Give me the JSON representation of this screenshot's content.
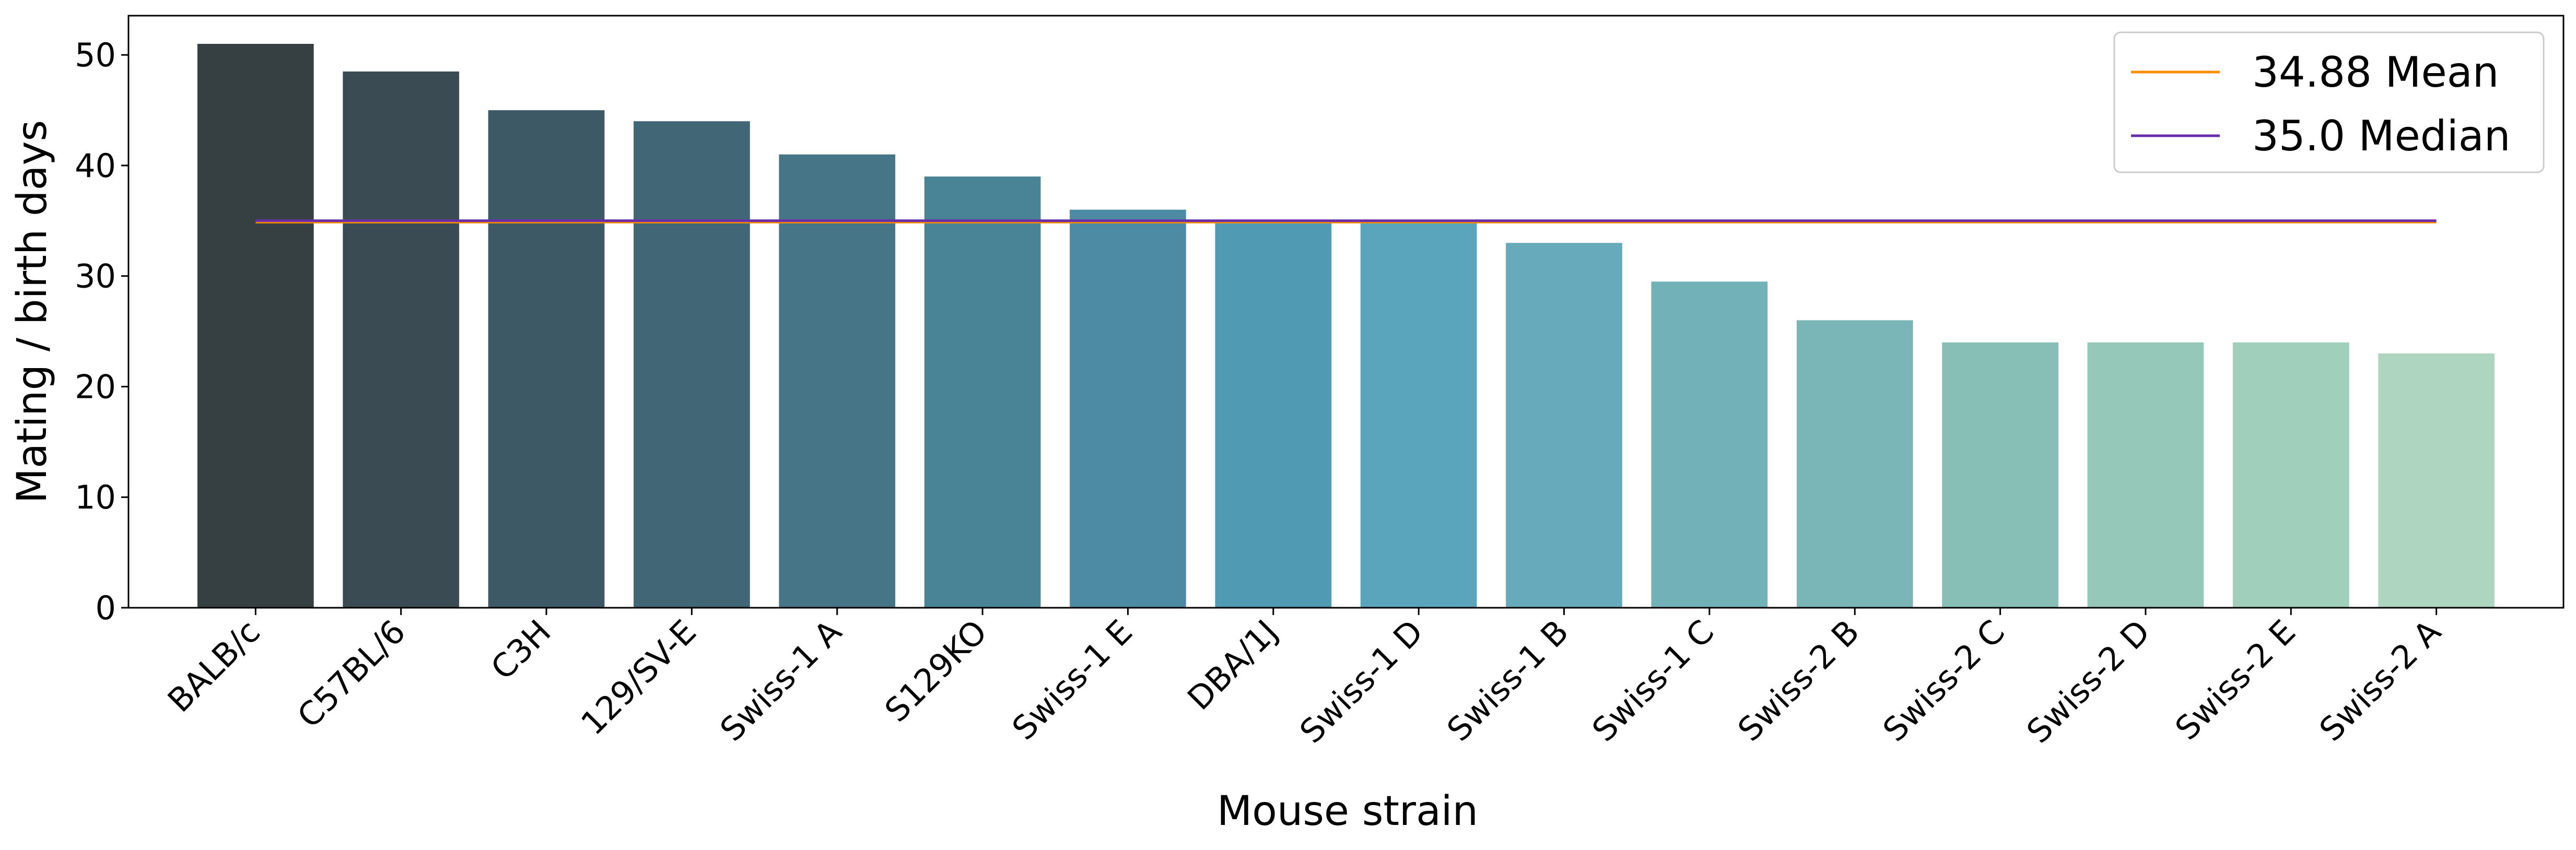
{
  "chart_data": {
    "type": "bar",
    "title": "",
    "xlabel": "Mouse strain",
    "ylabel": "Mating / birth days",
    "ylim": [
      0,
      53.55
    ],
    "yticks": [
      0,
      10,
      20,
      30,
      40,
      50
    ],
    "categories": [
      "BALB/c",
      "C57BL/6",
      "C3H",
      "129/SV-E",
      "Swiss-1 A",
      "S129KO",
      "Swiss-1 E",
      "DBA/1J",
      "Swiss-1 D",
      "Swiss-1 B",
      "Swiss-1 C",
      "Swiss-2 B",
      "Swiss-2 C",
      "Swiss-2 D",
      "Swiss-2 E",
      "Swiss-2 A"
    ],
    "values": [
      51,
      48.5,
      45,
      44,
      41,
      39,
      36,
      35,
      35,
      33,
      29.5,
      26,
      24,
      24,
      24,
      23
    ],
    "bar_colors": [
      "#363f42",
      "#3a4b54",
      "#3e5966",
      "#416776",
      "#457587",
      "#488396",
      "#4d8ba5",
      "#519ab3",
      "#5aa5bc",
      "#66aabb",
      "#71b1b7",
      "#7ab6b8",
      "#87bfb7",
      "#95c8b8",
      "#a0cfbb",
      "#add5c0"
    ],
    "grid": false,
    "reference_lines": [
      {
        "label": "34.88 Mean",
        "value": 34.88,
        "color": "#ff8c00"
      },
      {
        "label": "35.0 Median",
        "value": 35.0,
        "color": "#6a2fa8"
      }
    ],
    "legend_position": "top-right"
  }
}
